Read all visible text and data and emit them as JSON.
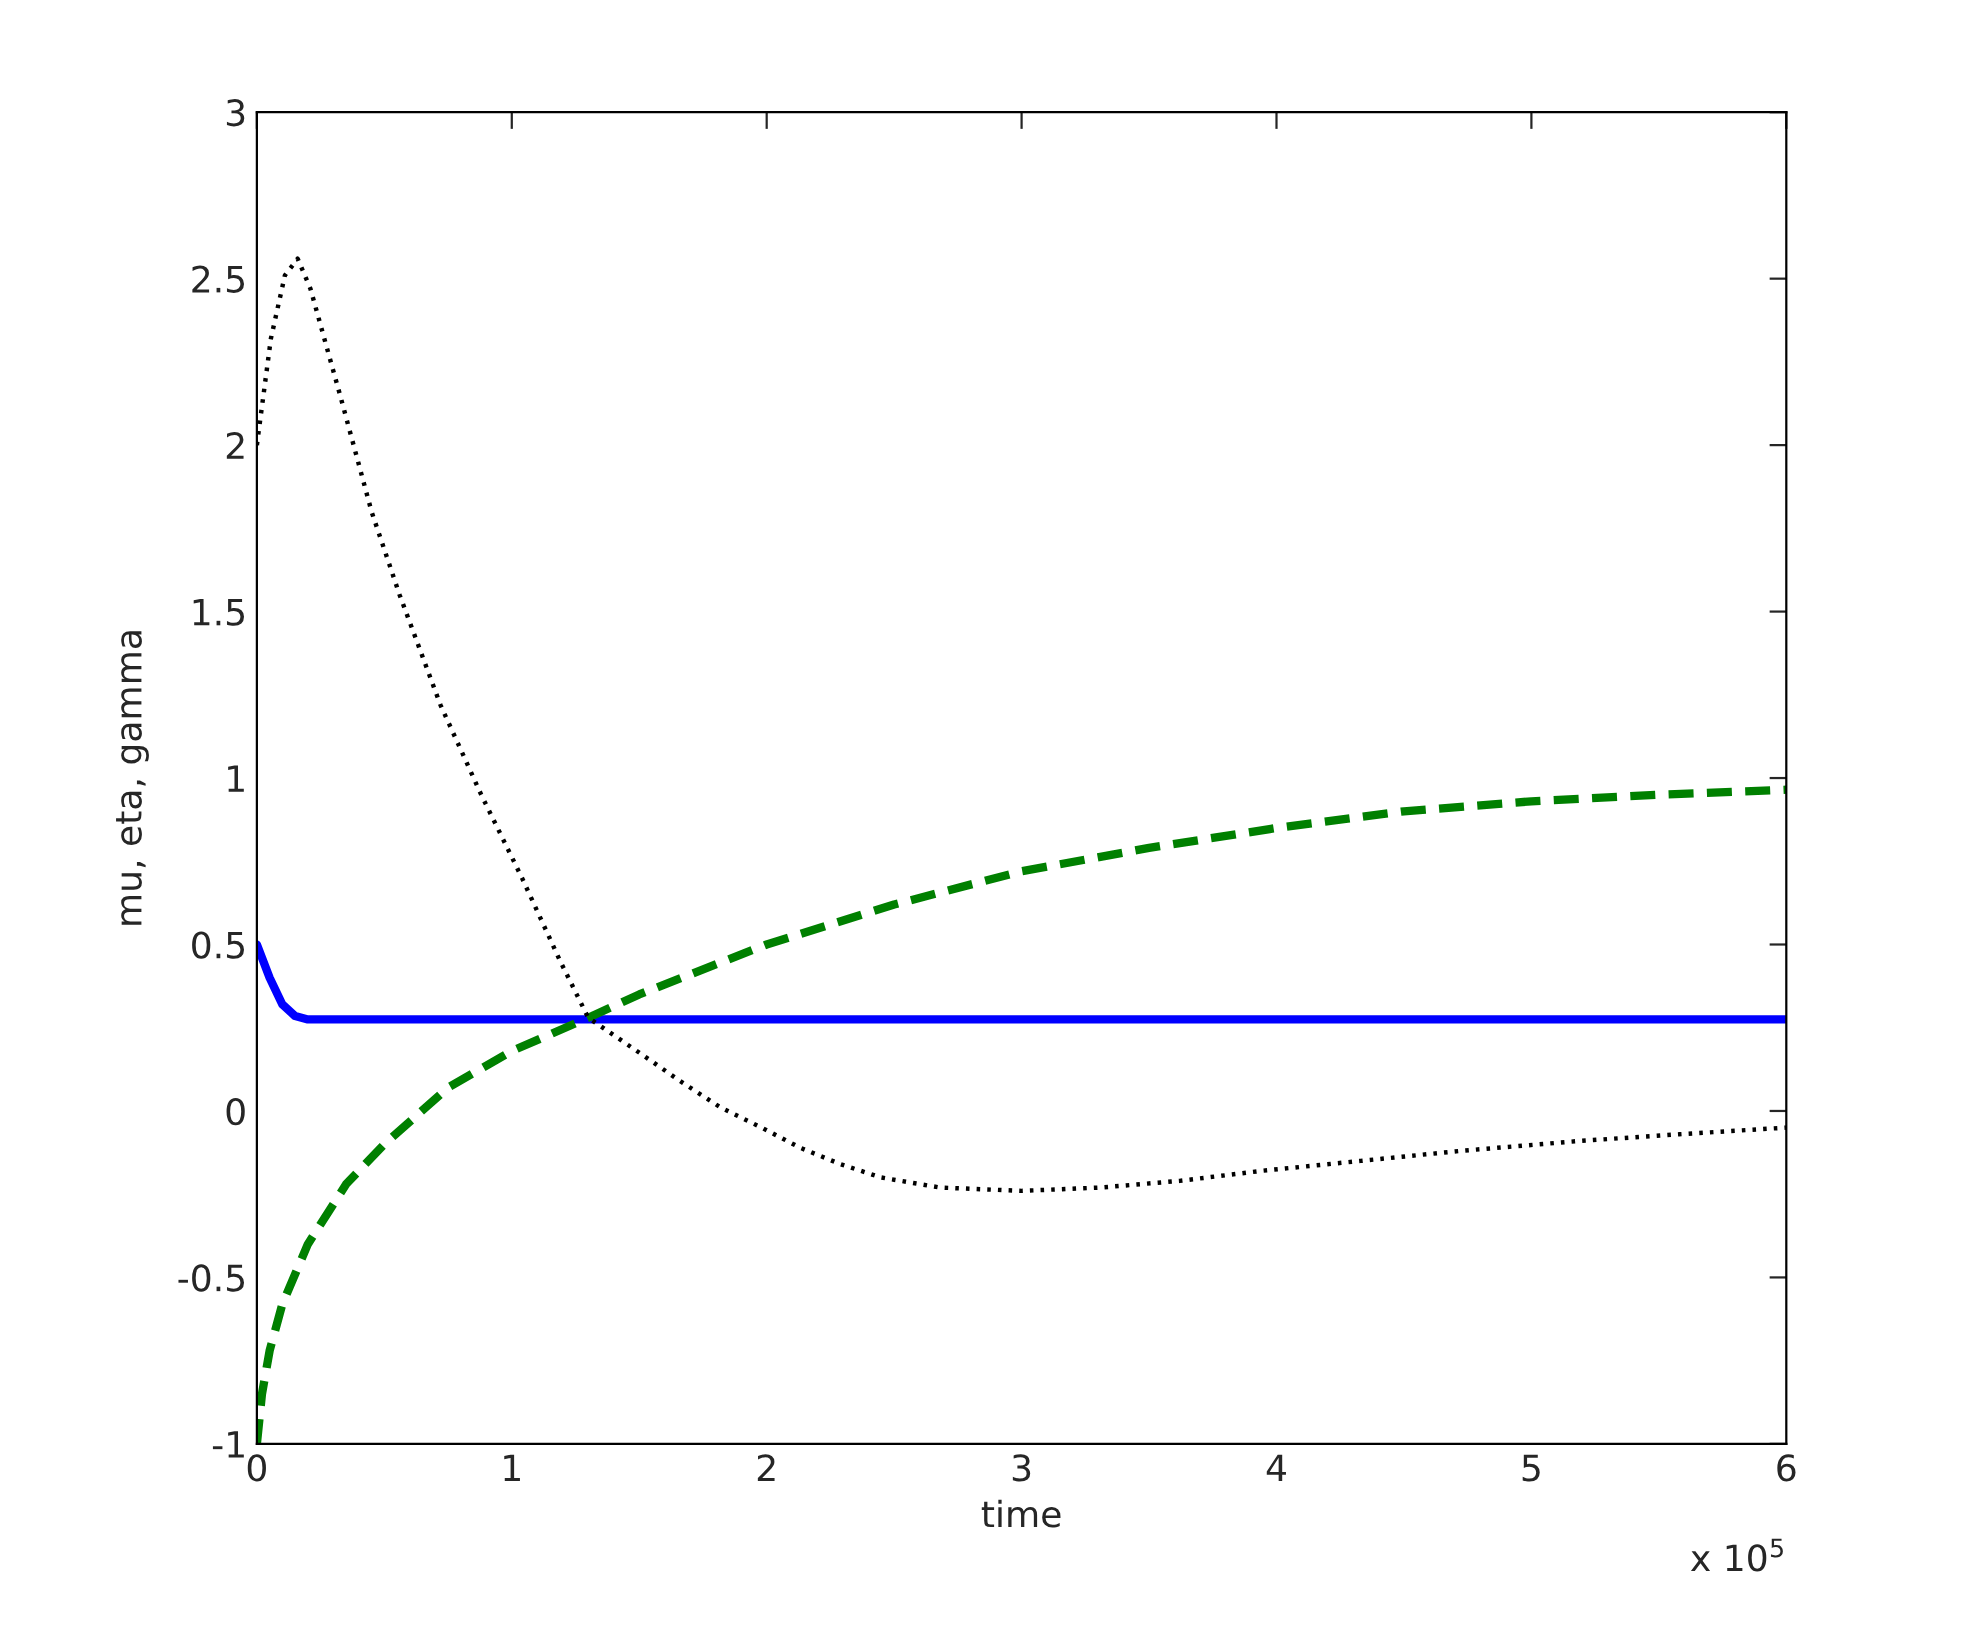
{
  "chart_data": {
    "type": "line",
    "xlabel": "time",
    "ylabel": "mu, eta, gamma",
    "xlim": [
      0,
      6
    ],
    "xticks": [
      0,
      1,
      2,
      3,
      4,
      5,
      6
    ],
    "ylim": [
      -1,
      3
    ],
    "yticks": [
      -1,
      -0.5,
      0,
      0.5,
      1,
      1.5,
      2,
      2.5,
      3
    ],
    "grid": false,
    "annotations": [
      "x 10$^{5}$"
    ],
    "series": [
      {
        "color": "#0000ff",
        "line_style": "solid",
        "x": [
          0,
          0.05,
          0.1,
          0.15,
          0.2,
          0.3,
          1,
          2,
          3,
          4,
          5,
          6
        ],
        "values": [
          0.5,
          0.4,
          0.32,
          0.285,
          0.275,
          0.275,
          0.275,
          0.275,
          0.275,
          0.275,
          0.275,
          0.275
        ]
      },
      {
        "color": "#008000",
        "line_style": "dashed",
        "x": [
          0,
          0.02,
          0.05,
          0.1,
          0.2,
          0.35,
          0.5,
          0.75,
          1,
          1.3,
          1.5,
          2,
          2.5,
          3,
          3.5,
          4,
          4.5,
          5,
          5.5,
          6
        ],
        "values": [
          -1,
          -0.85,
          -0.72,
          -0.58,
          -0.4,
          -0.22,
          -0.1,
          0.07,
          0.18,
          0.28,
          0.35,
          0.5,
          0.62,
          0.72,
          0.79,
          0.85,
          0.9,
          0.93,
          0.95,
          0.965
        ]
      },
      {
        "color": "#000000",
        "line_style": "dotted",
        "x": [
          0,
          0.055,
          0.11,
          0.16,
          0.21,
          0.33,
          0.45,
          0.56,
          0.72,
          0.88,
          1.04,
          1.19,
          1.3,
          1.51,
          1.66,
          1.82,
          1.98,
          2.13,
          2.29,
          2.45,
          2.68,
          3.0,
          3.31,
          3.62,
          3.94,
          4.33,
          4.72,
          5.19,
          5.58,
          6.0
        ],
        "values": [
          2.0,
          2.32,
          2.51,
          2.56,
          2.47,
          2.14,
          1.8,
          1.55,
          1.22,
          0.95,
          0.7,
          0.45,
          0.28,
          0.17,
          0.09,
          0.01,
          -0.05,
          -0.11,
          -0.16,
          -0.2,
          -0.23,
          -0.24,
          -0.23,
          -0.21,
          -0.18,
          -0.15,
          -0.12,
          -0.09,
          -0.07,
          -0.05
        ]
      }
    ]
  }
}
